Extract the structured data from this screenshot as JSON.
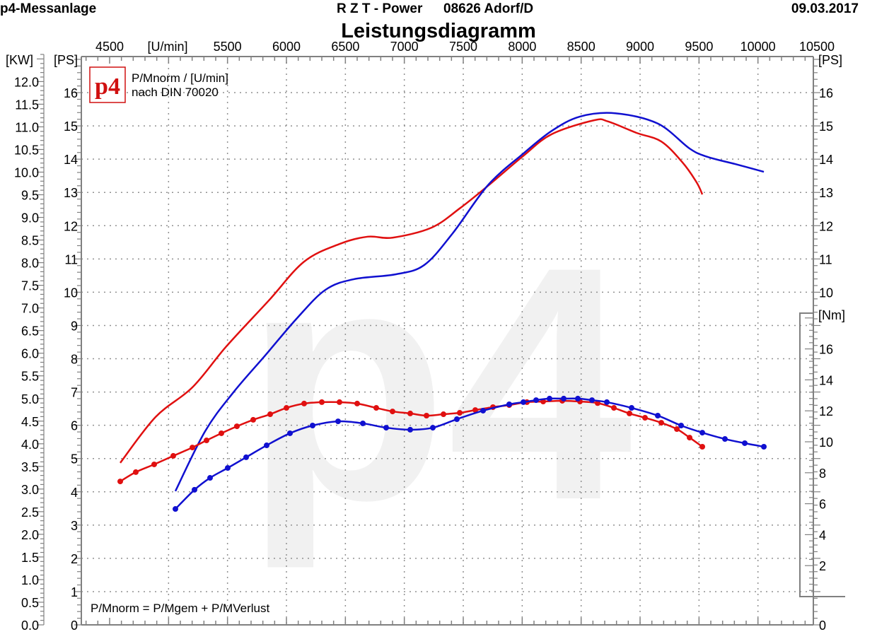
{
  "header": {
    "left": "p4-Messanlage",
    "center": "R Z T - Power",
    "location": "08626 Adorf/D",
    "date": "09.03.2017"
  },
  "logo_text": "p4",
  "watermark": "p4",
  "colors": {
    "red": "#e01010",
    "blue": "#1010d0",
    "grid": "#909090",
    "axis": "#808080"
  },
  "chart_data": {
    "type": "line",
    "title": "Leistungsdiagramm",
    "xlabel": "[U/min]",
    "ylabel_kw": "[KW]",
    "ylabel_ps": "[PS]",
    "ylabel_ps_right": "[PS]",
    "ylabel_nm": "[Nm]",
    "legend": [
      "P/Mnorm / [U/min]",
      "nach DIN 70020"
    ],
    "footnote": "P/Mnorm = P/Mgem + P/MVerlust",
    "xlim": [
      4260,
      10470
    ],
    "ylim_ps": [
      0,
      17.1
    ],
    "ylim_nm": [
      0,
      18.1
    ],
    "x_ticks": [
      "4500",
      "5500",
      "6000",
      "6500",
      "7000",
      "7500",
      "8000",
      "8500",
      "9000",
      "9500",
      "10000",
      "10500"
    ],
    "x_tick_values": [
      4500,
      5500,
      6000,
      6500,
      7000,
      7500,
      8000,
      8500,
      9000,
      9500,
      10000,
      10500
    ],
    "kw_ticks": [
      "0.0",
      "0.5",
      "1.0",
      "1.5",
      "2.0",
      "2.5",
      "3.0",
      "3.5",
      "4.0",
      "4.5",
      "5.0",
      "5.5",
      "6.0",
      "6.5",
      "7.0",
      "7.5",
      "8.0",
      "8.5",
      "9.0",
      "9.5",
      "10.0",
      "10.5",
      "11.0",
      "11.5",
      "12.0"
    ],
    "ps_ticks": [
      "0",
      "1",
      "2",
      "3",
      "4",
      "5",
      "6",
      "7",
      "8",
      "9",
      "10",
      "11",
      "12",
      "13",
      "14",
      "15",
      "16"
    ],
    "ps_right_ticks": [
      "0",
      "10",
      "11",
      "12",
      "13",
      "14",
      "15",
      "16"
    ],
    "ps_right_values": [
      0,
      10,
      11,
      12,
      13,
      14,
      15,
      16
    ],
    "nm_ticks": [
      "2",
      "4",
      "6",
      "8",
      "10",
      "12",
      "14",
      "16"
    ],
    "nm_values": [
      2,
      4,
      6,
      8,
      10,
      12,
      14,
      16
    ],
    "grid": true,
    "series": [
      {
        "name": "Power red",
        "unit": "PS",
        "color": "red",
        "x": [
          4590,
          4890,
          5202,
          5490,
          5850,
          6150,
          6450,
          6690,
          6900,
          7230,
          7470,
          7710,
          8010,
          8250,
          8610,
          8730,
          8970,
          9180,
          9360,
          9480,
          9528
        ],
        "y": [
          4.87,
          6.25,
          7.14,
          8.37,
          9.75,
          10.92,
          11.45,
          11.67,
          11.64,
          11.94,
          12.52,
          13.2,
          14.1,
          14.75,
          15.17,
          15.13,
          14.79,
          14.53,
          13.9,
          13.3,
          12.94
        ]
      },
      {
        "name": "Power blue",
        "unit": "PS",
        "color": "blue",
        "x": [
          5058,
          5310,
          5550,
          5820,
          6090,
          6330,
          6570,
          6930,
          7170,
          7410,
          7710,
          8010,
          8250,
          8490,
          8790,
          9150,
          9420,
          9570,
          9810,
          10050
        ],
        "y": [
          4.02,
          5.82,
          6.99,
          8.1,
          9.22,
          10.07,
          10.39,
          10.54,
          10.82,
          11.77,
          13.22,
          14.17,
          14.85,
          15.28,
          15.38,
          15.07,
          14.32,
          14.07,
          13.85,
          13.62
        ]
      },
      {
        "name": "Torque red",
        "unit": "Nm",
        "color": "red",
        "markers": true,
        "x": [
          4590,
          4722,
          4878,
          5040,
          5202,
          5322,
          5448,
          5580,
          5718,
          5862,
          6000,
          6150,
          6300,
          6450,
          6600,
          6762,
          6900,
          7050,
          7188,
          7332,
          7470,
          7602,
          7752,
          7890,
          8040,
          8178,
          8340,
          8490,
          8640,
          8778,
          8910,
          9042,
          9180,
          9312,
          9420,
          9528
        ],
        "y": [
          7.44,
          8.04,
          8.54,
          9.09,
          9.63,
          10.09,
          10.55,
          11.0,
          11.42,
          11.78,
          12.19,
          12.47,
          12.56,
          12.56,
          12.47,
          12.19,
          11.96,
          11.83,
          11.69,
          11.78,
          11.87,
          12.05,
          12.24,
          12.37,
          12.56,
          12.6,
          12.65,
          12.6,
          12.5,
          12.19,
          11.83,
          11.55,
          11.23,
          10.82,
          10.27,
          9.68
        ]
      },
      {
        "name": "Torque blue",
        "unit": "Nm",
        "color": "blue",
        "markers": true,
        "x": [
          5058,
          5220,
          5352,
          5502,
          5658,
          5832,
          6030,
          6222,
          6438,
          6648,
          6846,
          7050,
          7242,
          7446,
          7668,
          7890,
          8010,
          8118,
          8232,
          8352,
          8472,
          8592,
          8718,
          8928,
          9150,
          9348,
          9528,
          9720,
          9888,
          10050
        ],
        "y": [
          5.66,
          6.9,
          7.67,
          8.31,
          9.0,
          9.77,
          10.55,
          11.05,
          11.32,
          11.19,
          10.91,
          10.78,
          10.91,
          11.46,
          12.01,
          12.42,
          12.56,
          12.69,
          12.79,
          12.79,
          12.79,
          12.69,
          12.56,
          12.19,
          11.69,
          11.05,
          10.59,
          10.18,
          9.91,
          9.68
        ]
      }
    ]
  }
}
